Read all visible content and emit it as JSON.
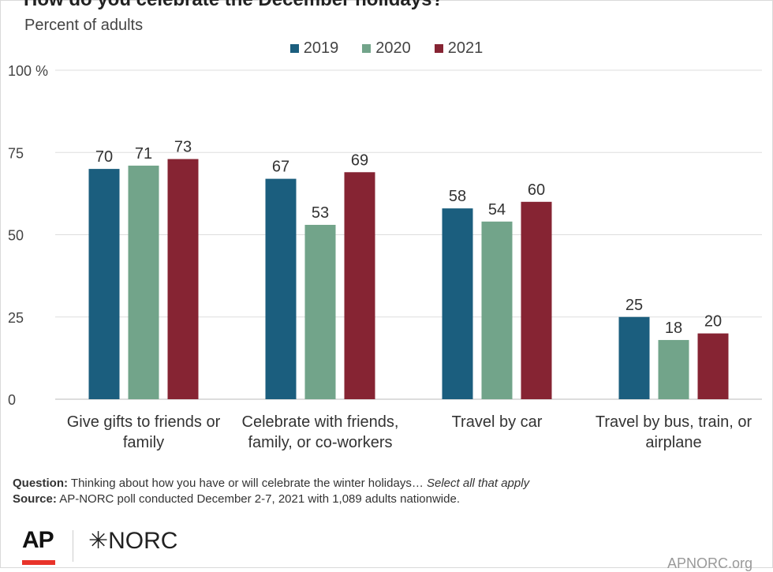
{
  "title": "How do you celebrate the December holidays?",
  "subtitle": "Percent of adults",
  "chart_data": {
    "type": "bar",
    "categories": [
      [
        "Give gifts to friends or",
        "family"
      ],
      [
        "Celebrate with friends,",
        "family, or co-workers"
      ],
      [
        "Travel by car",
        ""
      ],
      [
        "Travel by bus, train, or",
        "airplane"
      ]
    ],
    "series": [
      {
        "name": "2019",
        "color": "#1b5e7e",
        "values": [
          70,
          67,
          58,
          25
        ]
      },
      {
        "name": "2020",
        "color": "#72a48a",
        "values": [
          71,
          53,
          54,
          18
        ]
      },
      {
        "name": "2021",
        "color": "#862433",
        "values": [
          73,
          69,
          60,
          20
        ]
      }
    ],
    "ylim": [
      0,
      100
    ],
    "yticks": [
      0,
      25,
      50,
      75,
      100
    ],
    "ytick_labels": [
      "0",
      "25",
      "50",
      "75",
      "100 %"
    ],
    "grid": true,
    "legend": "top-center"
  },
  "notes": {
    "question_label": "Question:",
    "question_text": "Thinking about how you have or will celebrate the winter holidays…",
    "question_em": "Select all that apply",
    "source_label": "Source:",
    "source_text": "AP-NORC poll conducted December 2-7, 2021 with 1,089 adults nationwide."
  },
  "logos": {
    "ap": "AP",
    "norc": "✳NORC",
    "site": "APNORC.org"
  }
}
